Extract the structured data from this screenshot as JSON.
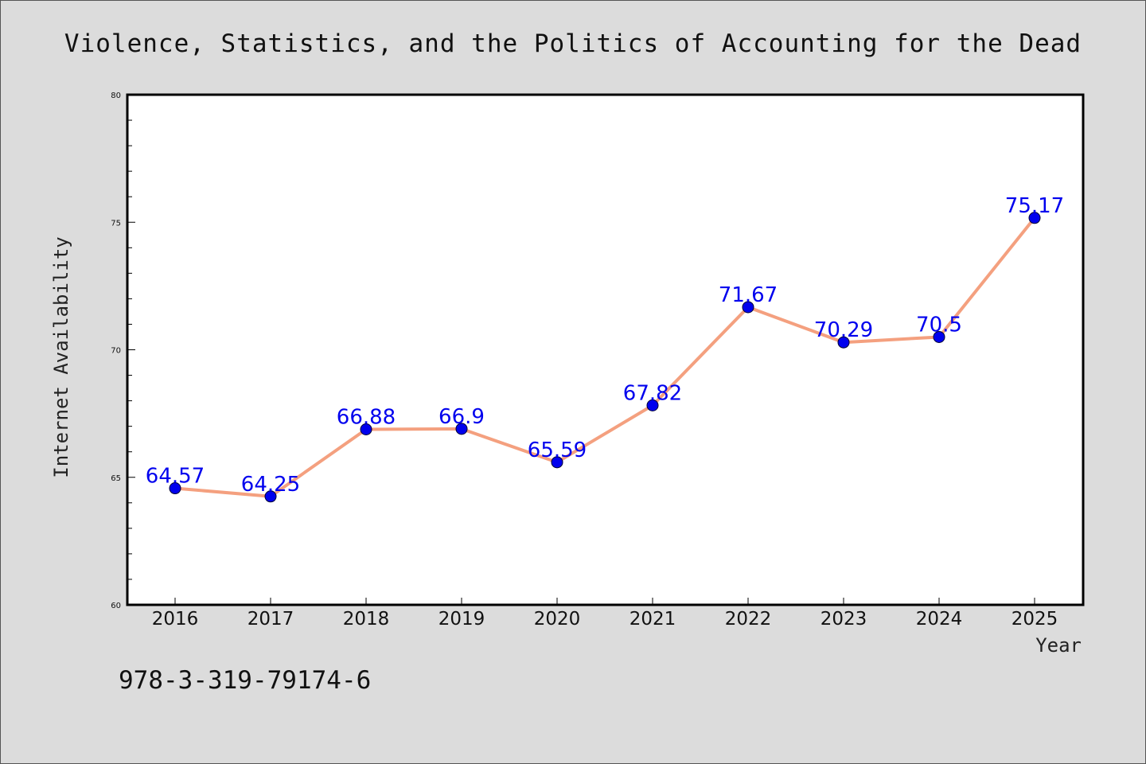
{
  "chart_data": {
    "type": "line",
    "title": "Violence, Statistics, and the Politics of Accounting for the Dead",
    "xlabel": "Year",
    "ylabel": "Internet Availability",
    "categories": [
      "2016",
      "2017",
      "2018",
      "2019",
      "2020",
      "2021",
      "2022",
      "2023",
      "2024",
      "2025"
    ],
    "series": [
      {
        "values": [
          64.57,
          64.25,
          66.88,
          66.9,
          65.59,
          67.82,
          71.67,
          70.29,
          70.5,
          75.17
        ],
        "labels": [
          "64.57",
          "64.25",
          "66.88",
          "66.9",
          "65.59",
          "67.82",
          "71.67",
          "70.29",
          "70.5",
          "75.17"
        ],
        "line_color": "#f4a07f",
        "marker_color": "#0000ee"
      }
    ],
    "ylim": [
      60,
      80
    ],
    "yticks": [
      "60",
      "65",
      "70",
      "75",
      "80"
    ],
    "grid": false,
    "legend": "none"
  },
  "footnote": "978-3-319-79174-6",
  "colors": {
    "background": "#dcdcdc",
    "plot_area": "#ffffff",
    "data_label": "#0000ee"
  }
}
